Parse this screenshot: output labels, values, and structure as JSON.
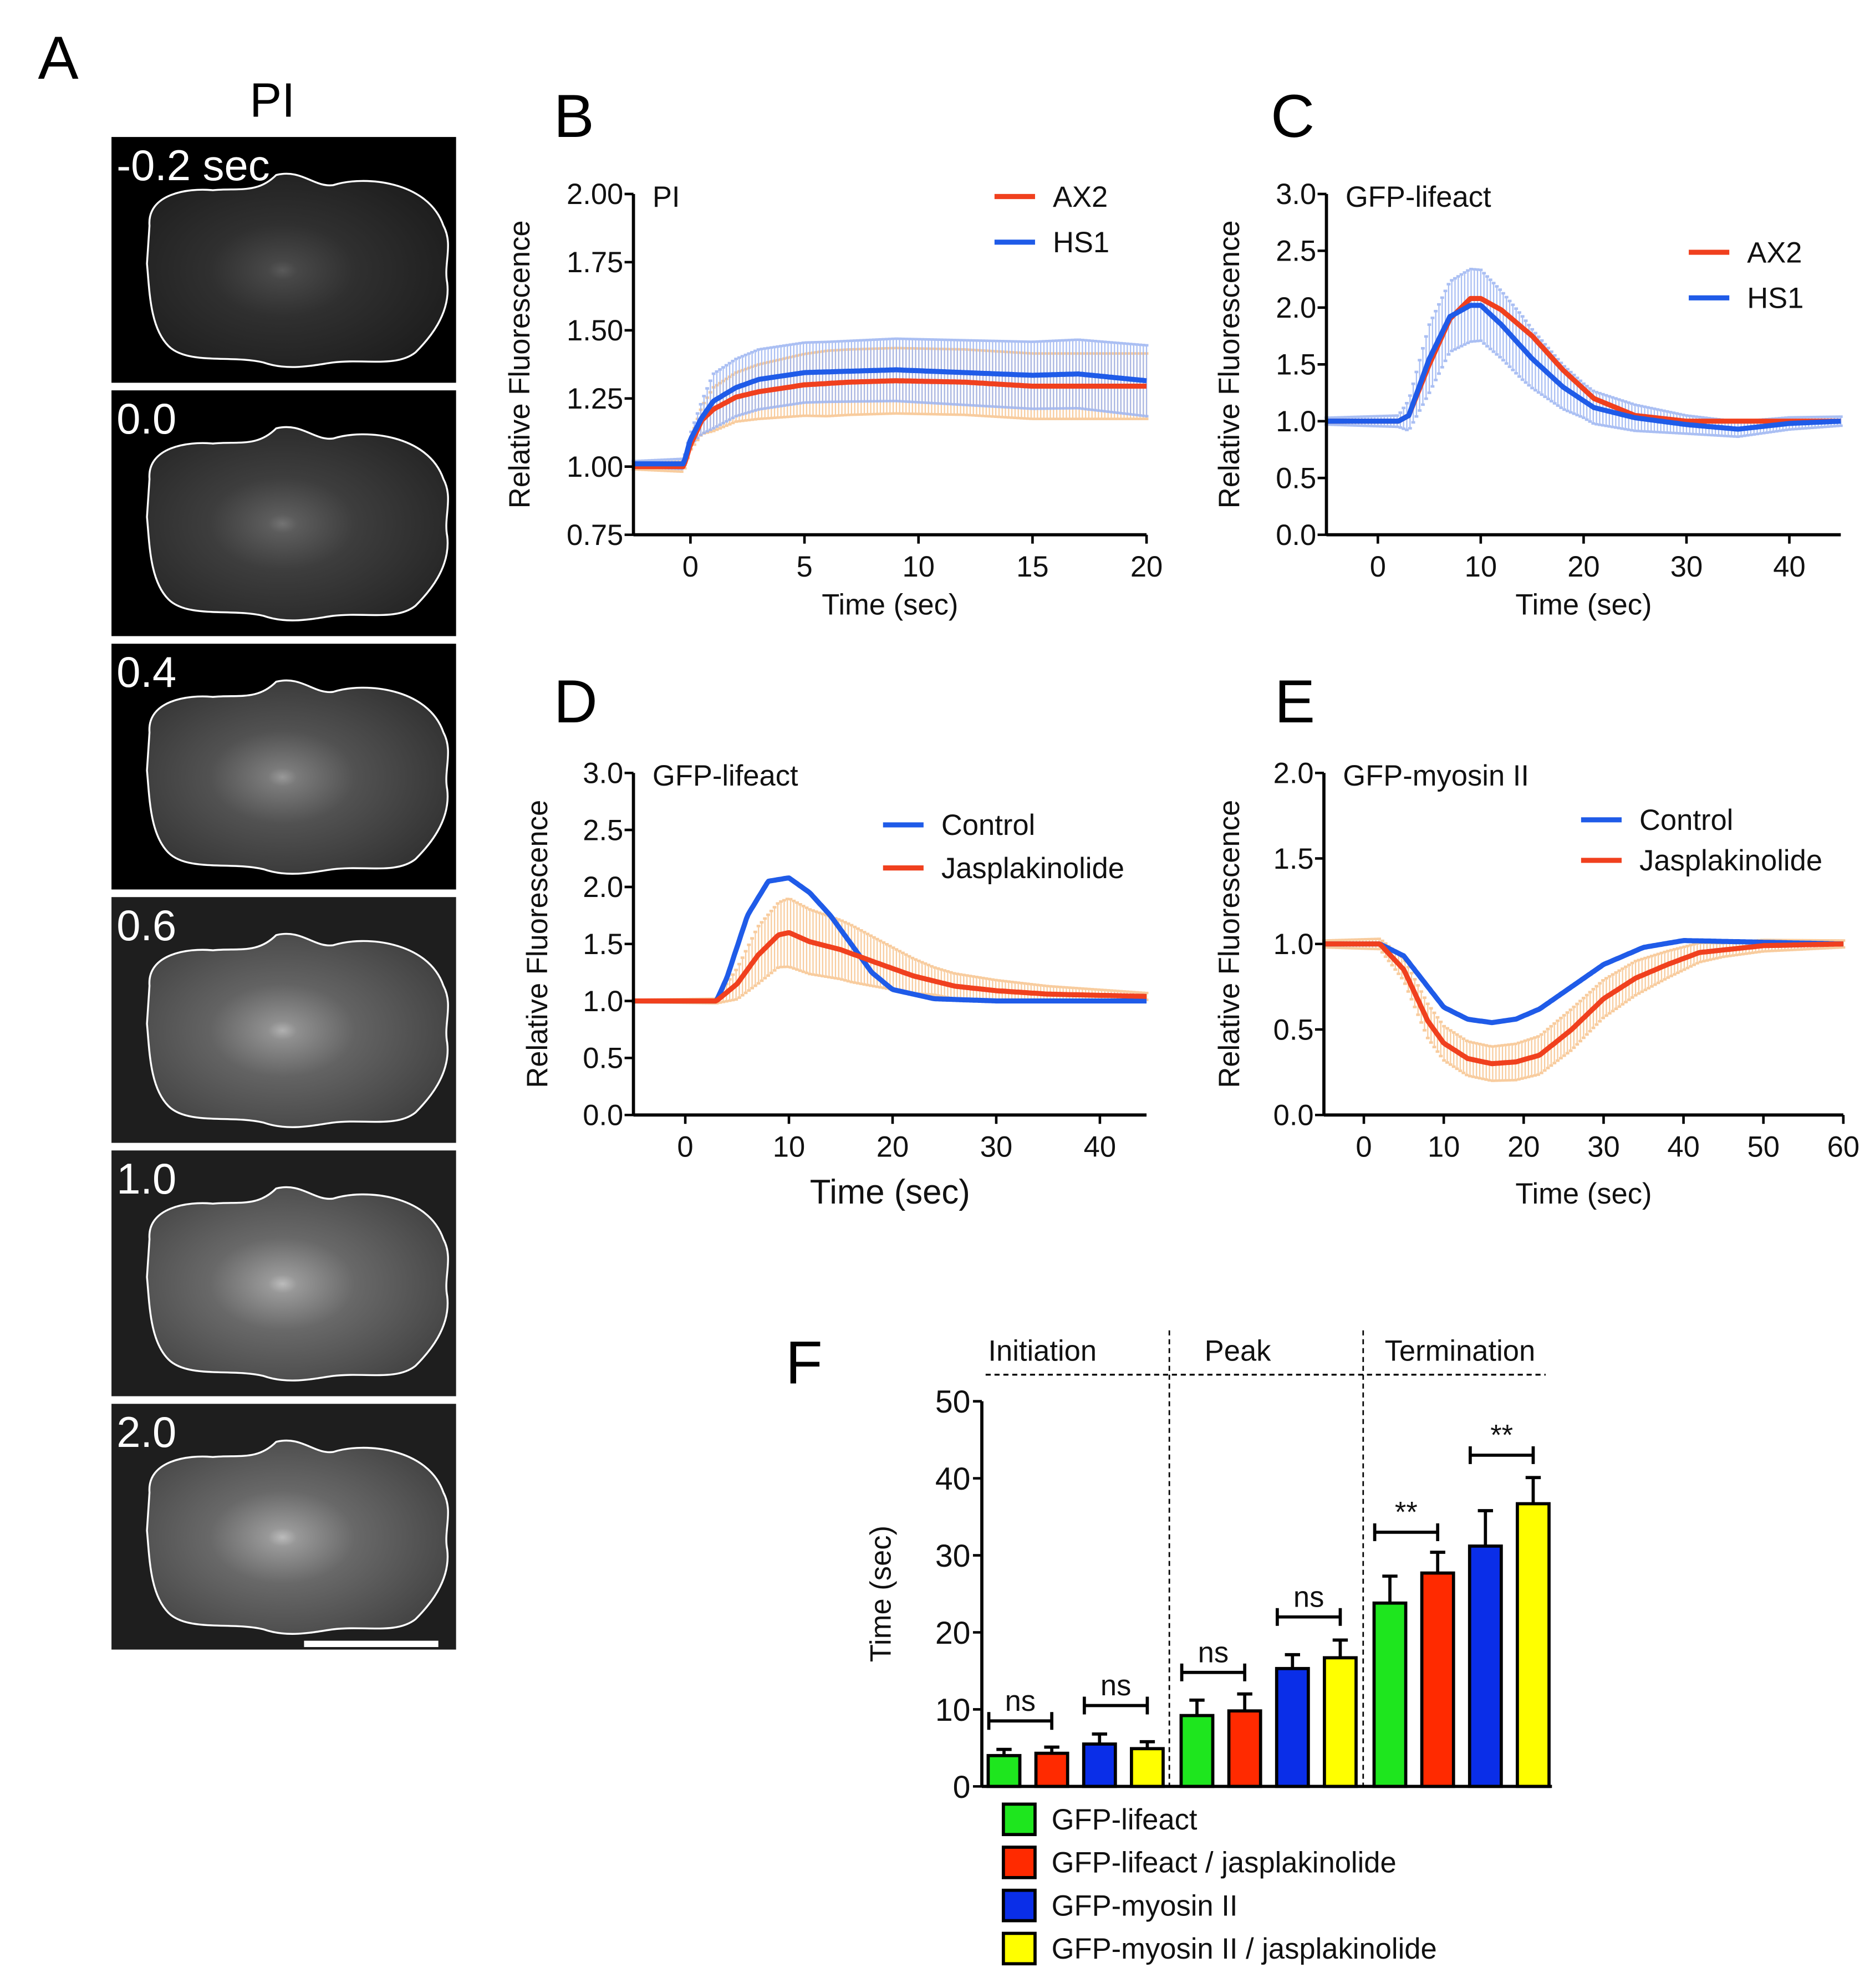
{
  "panel_labels": {
    "A": "A",
    "B": "B",
    "C": "C",
    "D": "D",
    "E": "E",
    "F": "F"
  },
  "panelA": {
    "title": "PI",
    "frames": [
      "-0.2 sec",
      "0.0",
      "0.4",
      "0.6",
      "1.0",
      "2.0"
    ],
    "frame_brightness": [
      0.35,
      0.45,
      0.6,
      0.65,
      0.7,
      0.7
    ]
  },
  "colors": {
    "red": "#f0401e",
    "blue": "#1f5be8",
    "orange_band": "#f7c48e",
    "blue_band": "#9cb4f2",
    "green": "#1ee61e",
    "bar_red": "#ff2a00",
    "bar_blue": "#0a2ee8",
    "yellow": "#ffff00"
  },
  "chart_data": [
    {
      "id": "B",
      "type": "line",
      "inset": "PI",
      "xlabel": "Time (sec)",
      "ylabel": "Relative Fluorescence",
      "xlim": [
        -2.5,
        20
      ],
      "ylim": [
        0.75,
        2.0
      ],
      "xticks": [
        0,
        5,
        10,
        15,
        20
      ],
      "yticks": [
        "0.75",
        "1.00",
        "1.25",
        "1.50",
        "1.75",
        "2.00"
      ],
      "series": [
        {
          "name": "AX2",
          "color": "#f0401e",
          "band": "#f7c48e",
          "points": [
            [
              -2.5,
              1.0
            ],
            [
              -0.3,
              1.0
            ],
            [
              0,
              1.08
            ],
            [
              0.5,
              1.17
            ],
            [
              1,
              1.21
            ],
            [
              2,
              1.255
            ],
            [
              3,
              1.275
            ],
            [
              5,
              1.3
            ],
            [
              7,
              1.31
            ],
            [
              9,
              1.315
            ],
            [
              12,
              1.31
            ],
            [
              15,
              1.295
            ],
            [
              20,
              1.295
            ]
          ],
          "sem": [
            [
              -2.5,
              0.01
            ],
            [
              0,
              0.02
            ],
            [
              1,
              0.08
            ],
            [
              3,
              0.1
            ],
            [
              6,
              0.12
            ],
            [
              20,
              0.12
            ]
          ]
        },
        {
          "name": "HS1",
          "color": "#1f5be8",
          "band": "#9cb4f2",
          "points": [
            [
              -2.5,
              1.01
            ],
            [
              -0.3,
              1.01
            ],
            [
              0,
              1.1
            ],
            [
              0.5,
              1.18
            ],
            [
              1,
              1.24
            ],
            [
              2,
              1.29
            ],
            [
              3,
              1.32
            ],
            [
              5,
              1.345
            ],
            [
              7,
              1.35
            ],
            [
              9,
              1.355
            ],
            [
              12,
              1.345
            ],
            [
              15,
              1.335
            ],
            [
              17,
              1.34
            ],
            [
              20,
              1.315
            ]
          ],
          "sem": [
            [
              -2.5,
              0.01
            ],
            [
              0,
              0.02
            ],
            [
              1,
              0.1
            ],
            [
              3,
              0.11
            ],
            [
              6,
              0.11
            ],
            [
              20,
              0.13
            ]
          ]
        }
      ]
    },
    {
      "id": "C",
      "type": "line",
      "inset": "GFP-lifeact",
      "xlabel": "Time (sec)",
      "ylabel": "Relative Fluorescence",
      "xlim": [
        -5,
        45
      ],
      "ylim": [
        0,
        3.0
      ],
      "xticks": [
        0,
        10,
        20,
        30,
        40
      ],
      "yticks": [
        "0.0",
        "0.5",
        "1.0",
        "1.5",
        "2.0",
        "2.5",
        "3.0"
      ],
      "series": [
        {
          "name": "AX2",
          "color": "#f0401e",
          "points": [
            [
              -5,
              1.0
            ],
            [
              2,
              1.0
            ],
            [
              3,
              1.05
            ],
            [
              5,
              1.5
            ],
            [
              7,
              1.9
            ],
            [
              9,
              2.08
            ],
            [
              10,
              2.08
            ],
            [
              12,
              1.98
            ],
            [
              15,
              1.75
            ],
            [
              18,
              1.45
            ],
            [
              21,
              1.2
            ],
            [
              25,
              1.05
            ],
            [
              30,
              1.0
            ],
            [
              45,
              1.0
            ]
          ]
        },
        {
          "name": "HS1",
          "color": "#1f5be8",
          "band": "#9cb4f2",
          "points": [
            [
              -5,
              1.0
            ],
            [
              2,
              1.0
            ],
            [
              3,
              1.05
            ],
            [
              5,
              1.55
            ],
            [
              7,
              1.92
            ],
            [
              9,
              2.02
            ],
            [
              10,
              2.02
            ],
            [
              12,
              1.85
            ],
            [
              15,
              1.55
            ],
            [
              18,
              1.3
            ],
            [
              21,
              1.12
            ],
            [
              25,
              1.03
            ],
            [
              30,
              0.97
            ],
            [
              35,
              0.93
            ],
            [
              40,
              0.98
            ],
            [
              45,
              1.0
            ]
          ],
          "sem": [
            [
              -5,
              0.03
            ],
            [
              2,
              0.05
            ],
            [
              5,
              0.3
            ],
            [
              9,
              0.32
            ],
            [
              14,
              0.28
            ],
            [
              20,
              0.15
            ],
            [
              30,
              0.08
            ],
            [
              45,
              0.04
            ]
          ]
        }
      ]
    },
    {
      "id": "D",
      "type": "line",
      "inset": "GFP-lifeact",
      "xlabel": "Time (sec)",
      "ylabel": "Relative Fluorescence",
      "xlim": [
        -5,
        44.5
      ],
      "ylim": [
        0,
        3.0
      ],
      "xticks": [
        0,
        10,
        20,
        30,
        40
      ],
      "yticks": [
        "0.0",
        "0.5",
        "1.0",
        "1.5",
        "2.0",
        "2.5",
        "3.0"
      ],
      "series": [
        {
          "name": "Control",
          "color": "#1f5be8",
          "points": [
            [
              -5,
              1
            ],
            [
              3,
              1
            ],
            [
              4,
              1.2
            ],
            [
              6,
              1.75
            ],
            [
              8,
              2.05
            ],
            [
              10,
              2.08
            ],
            [
              12,
              1.95
            ],
            [
              14,
              1.75
            ],
            [
              16,
              1.5
            ],
            [
              18,
              1.25
            ],
            [
              20,
              1.1
            ],
            [
              24,
              1.02
            ],
            [
              30,
              1.0
            ],
            [
              44.5,
              1.0
            ]
          ]
        },
        {
          "name": "Jasplakinolide",
          "color": "#f0401e",
          "band": "#f7c48e",
          "points": [
            [
              -5,
              1
            ],
            [
              3,
              1
            ],
            [
              5,
              1.15
            ],
            [
              7,
              1.4
            ],
            [
              9,
              1.58
            ],
            [
              10,
              1.6
            ],
            [
              12,
              1.52
            ],
            [
              15,
              1.45
            ],
            [
              18,
              1.35
            ],
            [
              22,
              1.22
            ],
            [
              26,
              1.13
            ],
            [
              30,
              1.09
            ],
            [
              35,
              1.06
            ],
            [
              44.5,
              1.04
            ]
          ],
          "sem": [
            [
              -5,
              0.01
            ],
            [
              3,
              0.02
            ],
            [
              7,
              0.25
            ],
            [
              10,
              0.3
            ],
            [
              16,
              0.25
            ],
            [
              24,
              0.12
            ],
            [
              35,
              0.07
            ],
            [
              44.5,
              0.03
            ]
          ]
        }
      ]
    },
    {
      "id": "E",
      "type": "line",
      "inset": "GFP-myosin II",
      "xlabel": "Time (sec)",
      "ylabel": "Relative Fluorescence",
      "xlim": [
        -5,
        60
      ],
      "ylim": [
        0,
        2.0
      ],
      "xticks": [
        0,
        10,
        20,
        30,
        40,
        50,
        60
      ],
      "yticks": [
        "0.0",
        "0.5",
        "1.0",
        "1.5",
        "2.0"
      ],
      "series": [
        {
          "name": "Control",
          "color": "#1f5be8",
          "points": [
            [
              -5,
              1.0
            ],
            [
              2,
              1.0
            ],
            [
              5,
              0.93
            ],
            [
              8,
              0.75
            ],
            [
              10,
              0.63
            ],
            [
              13,
              0.56
            ],
            [
              16,
              0.54
            ],
            [
              19,
              0.56
            ],
            [
              22,
              0.62
            ],
            [
              26,
              0.75
            ],
            [
              30,
              0.88
            ],
            [
              35,
              0.98
            ],
            [
              40,
              1.02
            ],
            [
              60,
              1.0
            ]
          ]
        },
        {
          "name": "Jasplakinolide",
          "color": "#f0401e",
          "band": "#f7c48e",
          "points": [
            [
              -5,
              1.0
            ],
            [
              2,
              1.0
            ],
            [
              5,
              0.85
            ],
            [
              8,
              0.55
            ],
            [
              10,
              0.42
            ],
            [
              13,
              0.33
            ],
            [
              16,
              0.3
            ],
            [
              19,
              0.31
            ],
            [
              22,
              0.35
            ],
            [
              26,
              0.5
            ],
            [
              30,
              0.68
            ],
            [
              34,
              0.8
            ],
            [
              38,
              0.88
            ],
            [
              42,
              0.95
            ],
            [
              50,
              0.99
            ],
            [
              60,
              1.0
            ]
          ],
          "sem": [
            [
              -5,
              0.02
            ],
            [
              2,
              0.03
            ],
            [
              8,
              0.1
            ],
            [
              16,
              0.1
            ],
            [
              26,
              0.12
            ],
            [
              34,
              0.1
            ],
            [
              45,
              0.04
            ],
            [
              60,
              0.02
            ]
          ]
        }
      ]
    },
    {
      "id": "F",
      "type": "bar",
      "ylabel": "Time (sec)",
      "ylim": [
        0,
        50
      ],
      "yticks": [
        0,
        10,
        20,
        30,
        40,
        50
      ],
      "groups": [
        "Initiation",
        "Peak",
        "Termination"
      ],
      "legend": [
        {
          "name": "GFP-lifeact",
          "color": "#1ee61e"
        },
        {
          "name": "GFP-lifeact / jasplakinolide",
          "color": "#ff2a00"
        },
        {
          "name": "GFP-myosin II",
          "color": "#0a2ee8"
        },
        {
          "name": "GFP-myosin II / jasplakinolide",
          "color": "#ffff00"
        }
      ],
      "values": [
        4.0,
        4.3,
        5.5,
        4.9,
        9.2,
        9.8,
        15.3,
        16.7,
        23.8,
        27.7,
        31.2,
        36.7
      ],
      "errors": [
        0.8,
        0.8,
        1.3,
        0.9,
        2.0,
        2.2,
        1.8,
        2.3,
        3.5,
        2.7,
        4.6,
        3.4
      ],
      "series_index": [
        0,
        1,
        2,
        3,
        0,
        1,
        2,
        3,
        0,
        1,
        2,
        3
      ],
      "comparisons": [
        {
          "bars": [
            0,
            1
          ],
          "y": 8.5,
          "label": "ns"
        },
        {
          "bars": [
            2,
            3
          ],
          "y": 10.5,
          "label": "ns"
        },
        {
          "bars": [
            4,
            5
          ],
          "y": 14.8,
          "label": "ns"
        },
        {
          "bars": [
            6,
            7
          ],
          "y": 22.0,
          "label": "ns"
        },
        {
          "bars": [
            8,
            9
          ],
          "y": 33.0,
          "label": "**"
        },
        {
          "bars": [
            10,
            11
          ],
          "y": 43.0,
          "label": "**"
        }
      ]
    }
  ]
}
